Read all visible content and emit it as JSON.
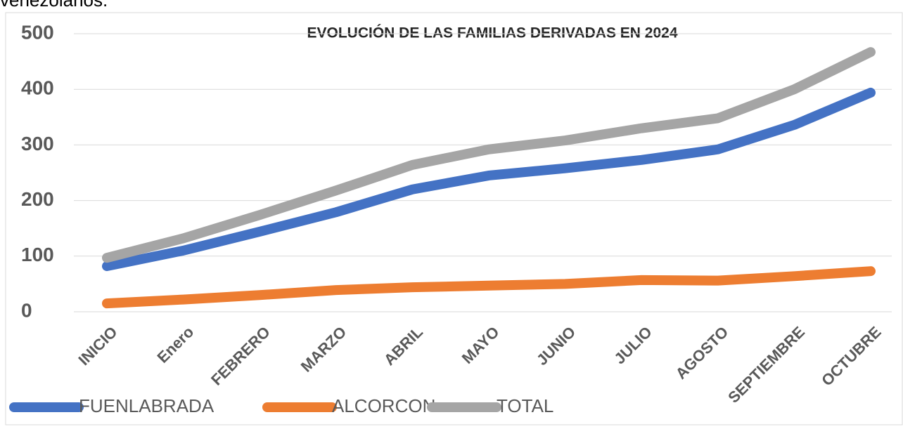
{
  "preceding_text": "venezolanos.",
  "chart_data": {
    "type": "line",
    "title": "EVOLUCIÓN DE LAS FAMILIAS DERIVADAS EN 2024",
    "categories": [
      "INICIO",
      "Enero",
      "FEBRERO",
      "MARZO",
      "ABRIL",
      "MAYO",
      "JUNIO",
      "JULIO",
      "AGOSTO",
      "SEPTIEMBRE",
      "OCTUBRE"
    ],
    "series": [
      {
        "name": "FUENLABRADA",
        "color": "#4472c4",
        "values": [
          82,
          110,
          144,
          179,
          220,
          245,
          258,
          273,
          292,
          336,
          394
        ]
      },
      {
        "name": "ALCORCON",
        "color": "#ed7d31",
        "values": [
          15,
          22,
          30,
          39,
          44,
          47,
          50,
          57,
          56,
          64,
          73
        ]
      },
      {
        "name": "TOTAL",
        "color": "#a5a5a5",
        "values": [
          97,
          132,
          174,
          218,
          264,
          292,
          308,
          330,
          348,
          400,
          467
        ]
      }
    ],
    "ylim": [
      0,
      500
    ],
    "yticks": [
      0,
      100,
      200,
      300,
      400,
      500
    ],
    "grid": true,
    "legend": "bottom-left"
  }
}
